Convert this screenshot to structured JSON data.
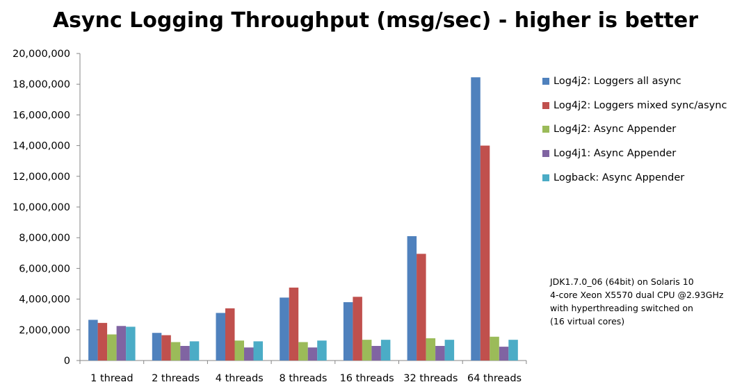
{
  "chart_data": {
    "type": "bar",
    "title": "Async Logging Throughput (msg/sec) - higher is better",
    "xlabel": "",
    "ylabel": "",
    "ylim": [
      0,
      20000000
    ],
    "yticks": [
      0,
      2000000,
      4000000,
      6000000,
      8000000,
      10000000,
      12000000,
      14000000,
      16000000,
      18000000,
      20000000
    ],
    "ytick_labels": [
      "0",
      "2,000,000",
      "4,000,000",
      "6,000,000",
      "8,000,000",
      "10,000,000",
      "12,000,000",
      "14,000,000",
      "16,000,000",
      "18,000,000",
      "20,000,000"
    ],
    "grid": false,
    "legend_position": "right",
    "categories": [
      "1 thread",
      "2 threads",
      "4 threads",
      "8 threads",
      "16 threads",
      "32 threads",
      "64 threads"
    ],
    "series": [
      {
        "name": "Log4j2: Loggers all async",
        "color": "#4F81BD",
        "values": [
          2650000,
          1800000,
          3100000,
          4100000,
          3800000,
          8100000,
          18450000
        ]
      },
      {
        "name": "Log4j2: Loggers mixed sync/async",
        "color": "#C0504D",
        "values": [
          2450000,
          1650000,
          3400000,
          4750000,
          4150000,
          6950000,
          14000000
        ]
      },
      {
        "name": "Log4j2: Async Appender",
        "color": "#9BBB59",
        "values": [
          1700000,
          1200000,
          1300000,
          1200000,
          1350000,
          1450000,
          1550000
        ]
      },
      {
        "name": "Log4j1: Async Appender",
        "color": "#8064A2",
        "values": [
          2250000,
          950000,
          850000,
          850000,
          950000,
          950000,
          900000
        ]
      },
      {
        "name": "Logback: Async Appender",
        "color": "#4BACC6",
        "values": [
          2200000,
          1250000,
          1250000,
          1300000,
          1350000,
          1350000,
          1350000
        ]
      }
    ],
    "annotation": [
      "JDK1.7.0_06 (64bit) on Solaris 10",
      "4-core Xeon X5570 dual CPU @2.93GHz",
      "with hyperthreading switched on",
      "(16 virtual cores)"
    ]
  }
}
